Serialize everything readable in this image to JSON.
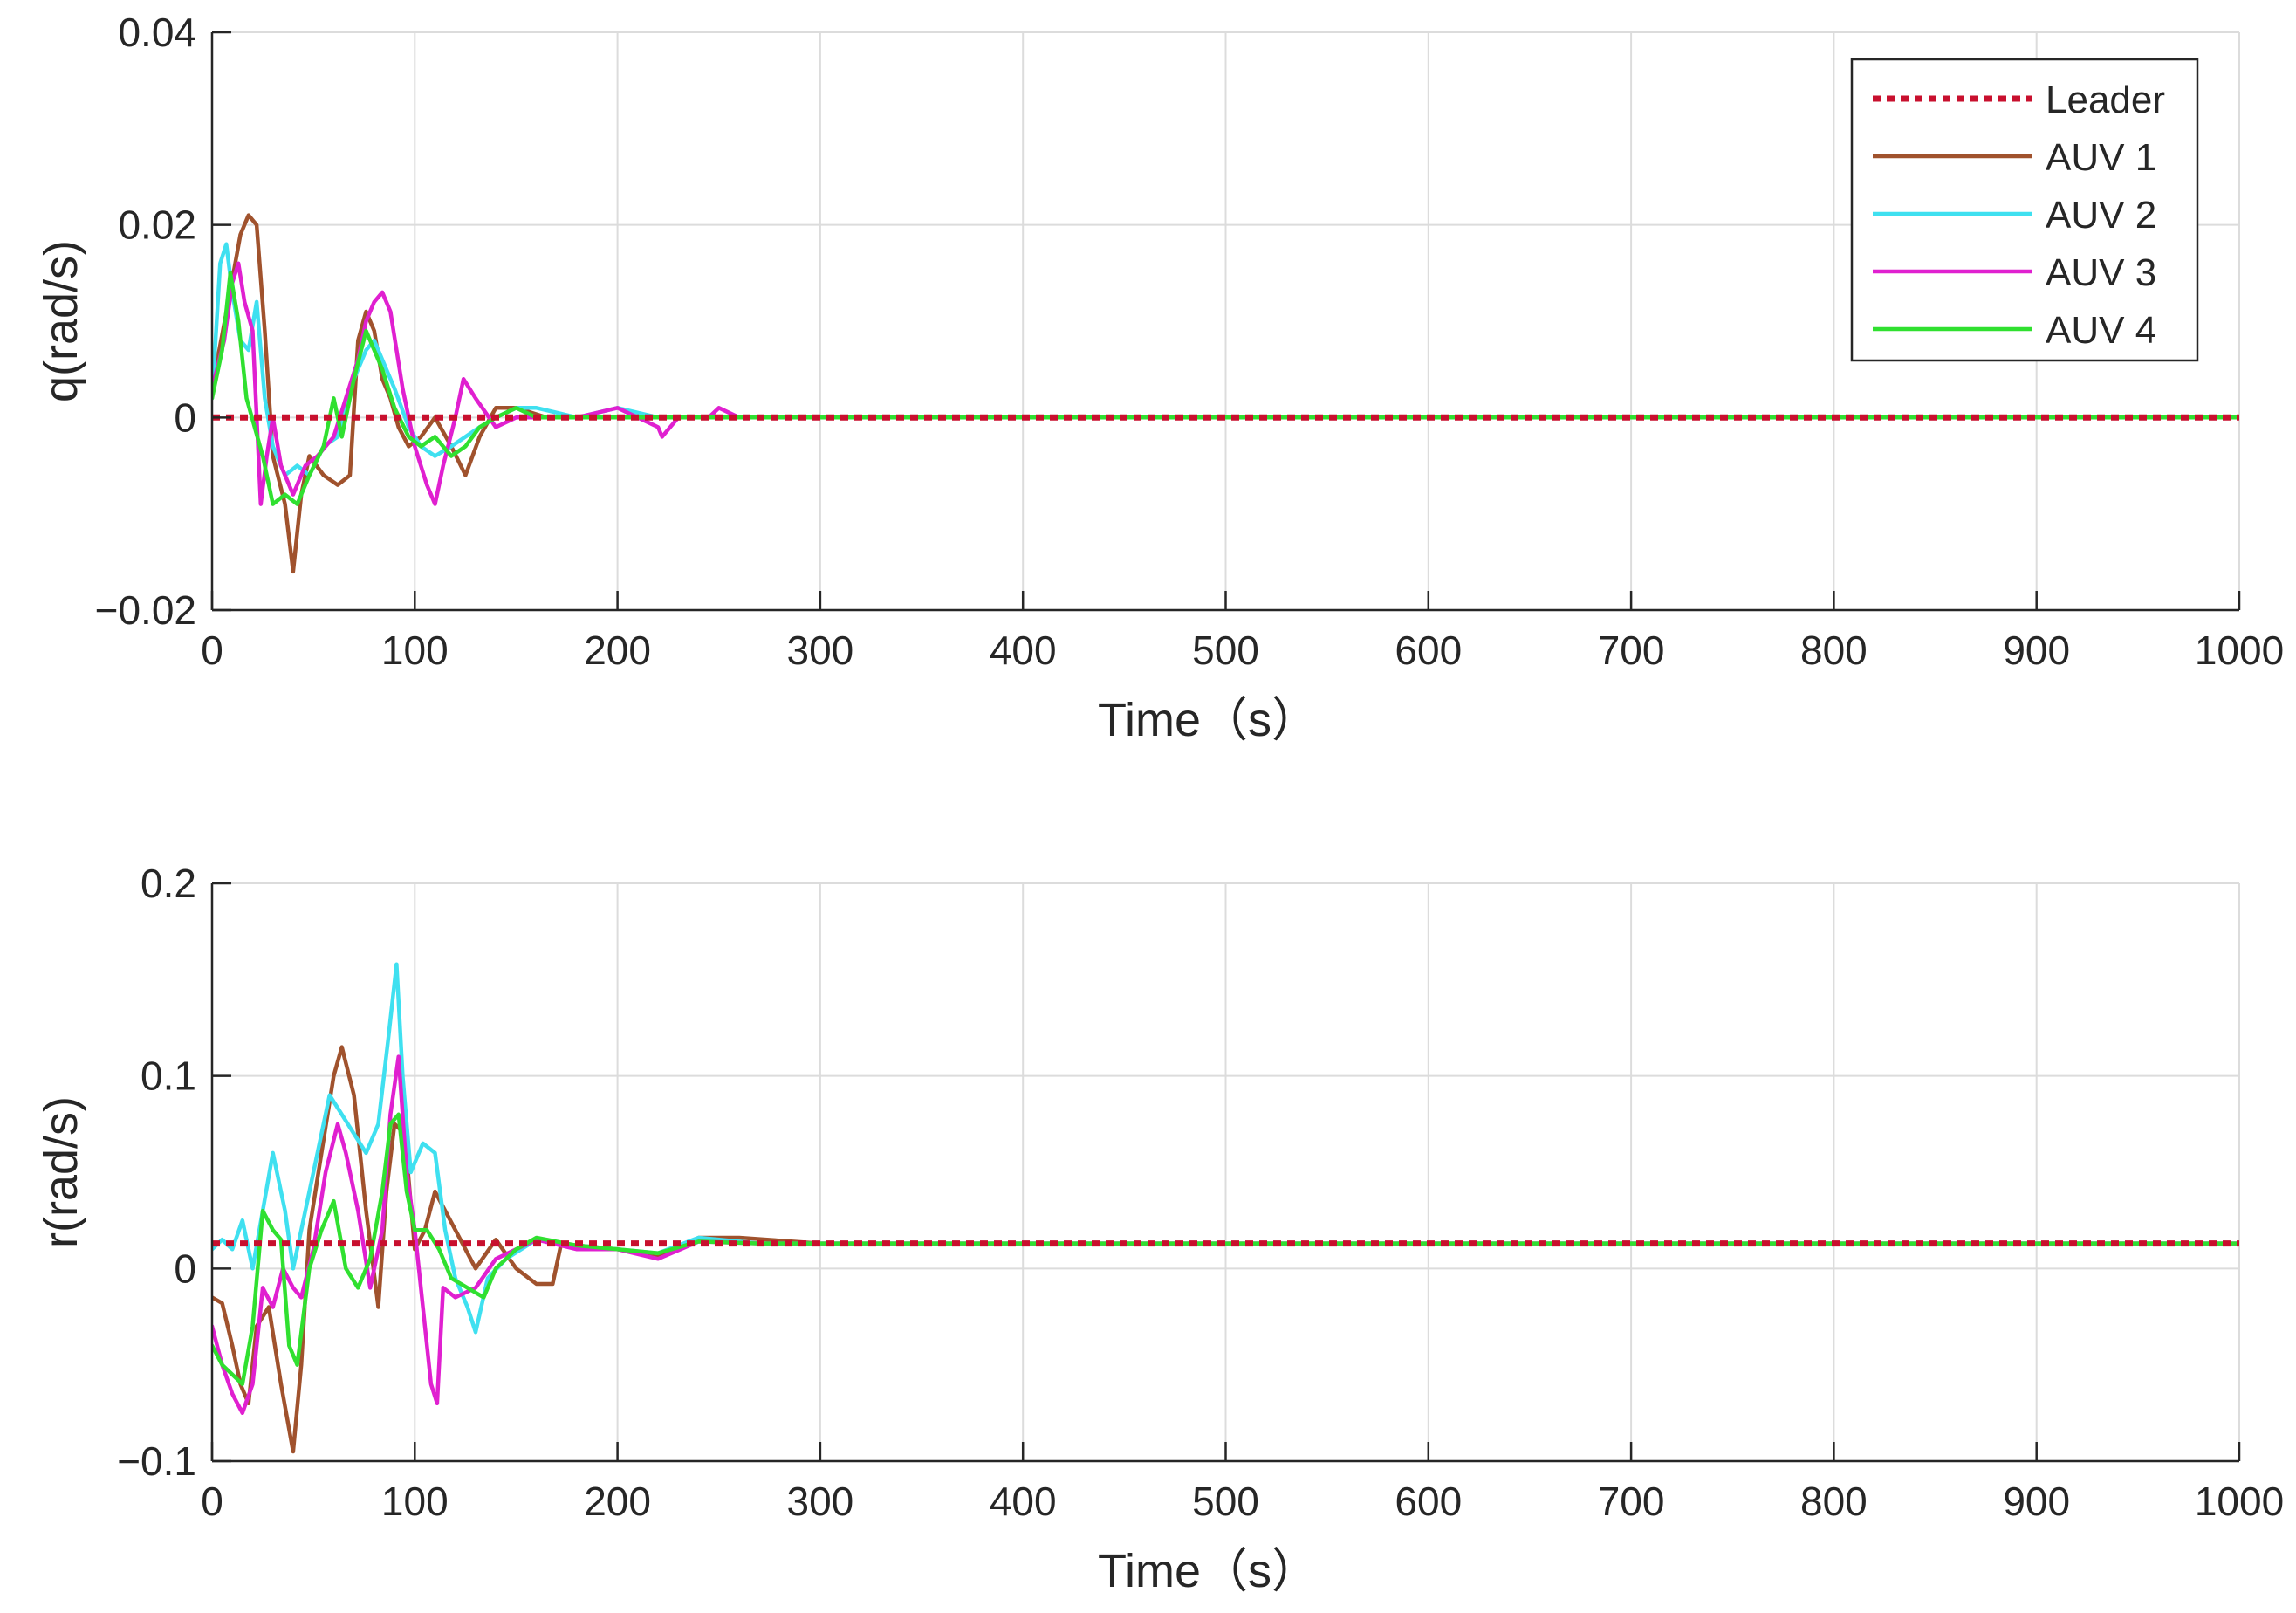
{
  "colors": {
    "leader": "#c8102e",
    "auv1": "#a0522d",
    "auv2": "#3fe0f0",
    "auv3": "#e020d0",
    "auv4": "#30e030",
    "axis": "#262626",
    "grid": "#dcdcdc"
  },
  "chart_data": [
    {
      "type": "line",
      "xlabel": "Time（s）",
      "ylabel": "q(rad/s)",
      "xlim": [
        0,
        1000
      ],
      "ylim": [
        -0.02,
        0.04
      ],
      "xticks": [
        0,
        100,
        200,
        300,
        400,
        500,
        600,
        700,
        800,
        900,
        1000
      ],
      "xtick_labels": [
        "0",
        "100",
        "200",
        "300",
        "400",
        "500",
        "600",
        "700",
        "800",
        "900",
        "1000"
      ],
      "yticks": [
        -0.02,
        0,
        0.02,
        0.04
      ],
      "ytick_labels": [
        "−0.02",
        "0",
        "0.02",
        "0.04"
      ],
      "grid": true,
      "legend": {
        "position": "top-right",
        "entries": [
          "Leader",
          "AUV 1",
          "AUV 2",
          "AUV 3",
          "AUV 4"
        ]
      },
      "series": [
        {
          "name": "Leader",
          "style": "dotted",
          "x": [
            0,
            1000
          ],
          "y": [
            0,
            0
          ]
        },
        {
          "name": "AUV 1",
          "x": [
            0,
            8,
            14,
            18,
            22,
            26,
            30,
            36,
            40,
            44,
            48,
            55,
            62,
            68,
            72,
            76,
            80,
            84,
            88,
            92,
            97,
            103,
            110,
            118,
            125,
            132,
            140,
            150,
            165,
            180,
            200,
            220,
            240,
            270,
            300,
            1000
          ],
          "y": [
            0.003,
            0.012,
            0.019,
            0.021,
            0.02,
            0.009,
            -0.004,
            -0.009,
            -0.016,
            -0.008,
            -0.004,
            -0.006,
            -0.007,
            -0.006,
            0.008,
            0.011,
            0.009,
            0.004,
            0.002,
            -0.001,
            -0.003,
            -0.002,
            0.0,
            -0.003,
            -0.006,
            -0.002,
            0.001,
            0.001,
            0.0,
            0.0,
            0.0,
            0.0,
            0.0,
            0.0,
            0.0,
            0.0
          ]
        },
        {
          "name": "AUV 2",
          "x": [
            0,
            4,
            7,
            10,
            14,
            18,
            22,
            26,
            30,
            36,
            42,
            48,
            55,
            62,
            70,
            76,
            80,
            84,
            90,
            97,
            103,
            110,
            118,
            125,
            132,
            140,
            150,
            160,
            180,
            200,
            220,
            250,
            300,
            1000
          ],
          "y": [
            0.002,
            0.016,
            0.018,
            0.013,
            0.008,
            0.007,
            0.012,
            0.002,
            -0.003,
            -0.006,
            -0.005,
            -0.006,
            -0.003,
            -0.002,
            0.004,
            0.007,
            0.008,
            0.006,
            0.003,
            -0.001,
            -0.003,
            -0.004,
            -0.003,
            -0.002,
            -0.001,
            0.0,
            0.001,
            0.001,
            0.0,
            0.001,
            0.0,
            0.0,
            0.0,
            0.0
          ]
        },
        {
          "name": "AUV 3",
          "x": [
            0,
            6,
            10,
            13,
            16,
            20,
            24,
            27,
            30,
            34,
            40,
            46,
            52,
            60,
            66,
            72,
            76,
            80,
            84,
            88,
            94,
            100,
            106,
            110,
            114,
            120,
            124,
            130,
            140,
            150,
            165,
            180,
            200,
            210,
            220,
            222,
            230,
            245,
            250,
            260,
            300,
            1000
          ],
          "y": [
            0.003,
            0.008,
            0.014,
            0.016,
            0.012,
            0.009,
            -0.009,
            -0.004,
            0.0,
            -0.005,
            -0.008,
            -0.005,
            -0.004,
            -0.002,
            0.002,
            0.006,
            0.01,
            0.012,
            0.013,
            0.011,
            0.003,
            -0.003,
            -0.007,
            -0.009,
            -0.005,
            0.0,
            0.004,
            0.002,
            -0.001,
            0.0,
            0.0,
            0.0,
            0.001,
            0.0,
            -0.001,
            -0.002,
            0.0,
            0.0,
            0.001,
            0.0,
            0.0,
            0.0
          ]
        },
        {
          "name": "AUV 4",
          "x": [
            0,
            5,
            9,
            13,
            17,
            21,
            25,
            30,
            36,
            42,
            48,
            55,
            60,
            64,
            70,
            76,
            80,
            84,
            90,
            97,
            103,
            110,
            118,
            125,
            132,
            140,
            150,
            160,
            180,
            200,
            220,
            250,
            300,
            1000
          ],
          "y": [
            0.002,
            0.007,
            0.015,
            0.01,
            0.002,
            -0.001,
            -0.004,
            -0.009,
            -0.008,
            -0.009,
            -0.006,
            -0.003,
            0.002,
            -0.002,
            0.004,
            0.009,
            0.007,
            0.005,
            0.001,
            -0.002,
            -0.003,
            -0.002,
            -0.004,
            -0.003,
            -0.001,
            0.0,
            0.001,
            0.0,
            0.0,
            0.0,
            0.0,
            0.0,
            0.0,
            0.0
          ]
        }
      ]
    },
    {
      "type": "line",
      "xlabel": "Time（s）",
      "ylabel": "r(rad/s)",
      "xlim": [
        0,
        1000
      ],
      "ylim": [
        -0.1,
        0.2
      ],
      "xticks": [
        0,
        100,
        200,
        300,
        400,
        500,
        600,
        700,
        800,
        900,
        1000
      ],
      "xtick_labels": [
        "0",
        "100",
        "200",
        "300",
        "400",
        "500",
        "600",
        "700",
        "800",
        "900",
        "1000"
      ],
      "yticks": [
        -0.1,
        0,
        0.1,
        0.2
      ],
      "ytick_labels": [
        "−0.1",
        "0",
        "0.1",
        "0.2"
      ],
      "grid": true,
      "series": [
        {
          "name": "Leader",
          "style": "dotted",
          "x": [
            0,
            1000
          ],
          "y": [
            0.013,
            0.013
          ]
        },
        {
          "name": "AUV 1",
          "x": [
            0,
            5,
            10,
            14,
            18,
            22,
            28,
            34,
            40,
            44,
            48,
            54,
            60,
            64,
            70,
            76,
            82,
            86,
            90,
            95,
            100,
            105,
            110,
            115,
            120,
            130,
            140,
            150,
            160,
            168,
            172,
            180,
            200,
            220,
            240,
            260,
            300,
            1000
          ],
          "y": [
            -0.015,
            -0.018,
            -0.04,
            -0.06,
            -0.07,
            -0.03,
            -0.02,
            -0.06,
            -0.095,
            -0.05,
            0.02,
            0.06,
            0.1,
            0.115,
            0.09,
            0.03,
            -0.02,
            0.04,
            0.075,
            0.07,
            0.01,
            0.02,
            0.04,
            0.03,
            0.02,
            0.0,
            0.015,
            0.0,
            -0.008,
            -0.008,
            0.012,
            0.012,
            0.01,
            0.006,
            0.016,
            0.016,
            0.013,
            0.013
          ]
        },
        {
          "name": "AUV 2",
          "x": [
            0,
            5,
            10,
            15,
            20,
            25,
            30,
            36,
            40,
            46,
            52,
            58,
            64,
            70,
            76,
            82,
            87,
            91,
            94,
            98,
            104,
            110,
            115,
            120,
            126,
            130,
            136,
            145,
            160,
            180,
            200,
            220,
            240,
            270,
            300,
            1000
          ],
          "y": [
            0.01,
            0.015,
            0.01,
            0.025,
            0.0,
            0.03,
            0.06,
            0.03,
            0.0,
            0.03,
            0.06,
            0.09,
            0.08,
            0.07,
            0.06,
            0.075,
            0.12,
            0.158,
            0.1,
            0.05,
            0.065,
            0.06,
            0.02,
            -0.005,
            -0.02,
            -0.033,
            -0.005,
            0.005,
            0.015,
            0.012,
            0.01,
            0.008,
            0.016,
            0.013,
            0.013,
            0.013
          ]
        },
        {
          "name": "AUV 3",
          "x": [
            0,
            5,
            10,
            15,
            20,
            25,
            30,
            35,
            40,
            44,
            50,
            56,
            62,
            66,
            72,
            78,
            84,
            88,
            92,
            96,
            100,
            104,
            108,
            111,
            114,
            120,
            130,
            140,
            160,
            180,
            200,
            220,
            240,
            270,
            300,
            1000
          ],
          "y": [
            -0.03,
            -0.05,
            -0.065,
            -0.075,
            -0.06,
            -0.01,
            -0.02,
            0.0,
            -0.01,
            -0.015,
            0.01,
            0.05,
            0.075,
            0.06,
            0.03,
            -0.01,
            0.02,
            0.08,
            0.11,
            0.05,
            0.02,
            -0.02,
            -0.06,
            -0.07,
            -0.01,
            -0.015,
            -0.01,
            0.005,
            0.015,
            0.01,
            0.01,
            0.005,
            0.014,
            0.013,
            0.013,
            0.013
          ]
        },
        {
          "name": "AUV 4",
          "x": [
            0,
            5,
            10,
            15,
            20,
            25,
            30,
            34,
            38,
            42,
            48,
            54,
            60,
            66,
            72,
            78,
            84,
            88,
            92,
            96,
            100,
            106,
            112,
            118,
            126,
            134,
            140,
            150,
            160,
            180,
            200,
            220,
            240,
            270,
            300,
            1000
          ],
          "y": [
            -0.04,
            -0.05,
            -0.055,
            -0.06,
            -0.03,
            0.03,
            0.02,
            0.015,
            -0.04,
            -0.05,
            0.0,
            0.02,
            0.035,
            0.0,
            -0.01,
            0.005,
            0.04,
            0.075,
            0.08,
            0.04,
            0.02,
            0.02,
            0.01,
            -0.005,
            -0.01,
            -0.015,
            0.0,
            0.01,
            0.016,
            0.012,
            0.01,
            0.008,
            0.014,
            0.013,
            0.013,
            0.013
          ]
        }
      ]
    }
  ]
}
